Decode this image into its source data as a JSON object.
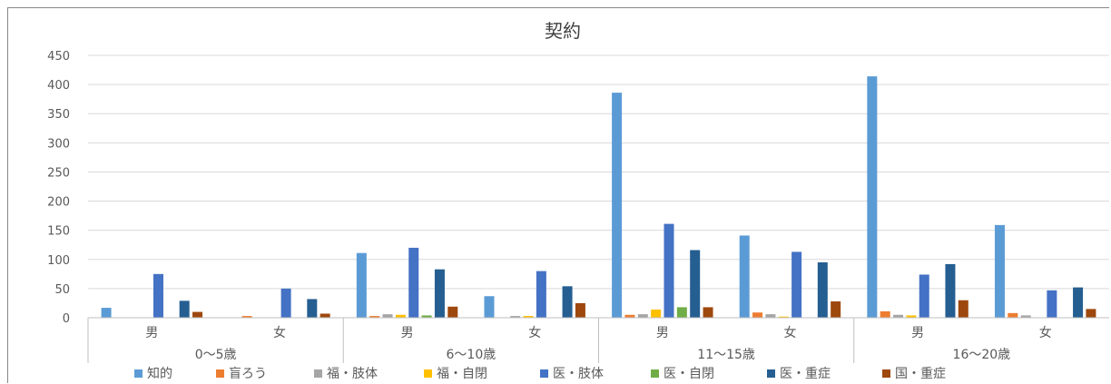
{
  "chart_data": {
    "type": "bar",
    "title": "契約",
    "ylim": [
      0,
      450
    ],
    "yticks": [
      "0",
      "50",
      "100",
      "150",
      "200",
      "250",
      "300",
      "350",
      "400",
      "450"
    ],
    "grid": true,
    "legend_position": "bottom",
    "groups": [
      {
        "label": "0〜5歳",
        "categories": [
          "男",
          "女"
        ]
      },
      {
        "label": "6〜10歳",
        "categories": [
          "男",
          "女"
        ]
      },
      {
        "label": "11〜15歳",
        "categories": [
          "男",
          "女"
        ]
      },
      {
        "label": "16〜20歳",
        "categories": [
          "男",
          "女"
        ]
      }
    ],
    "series": [
      {
        "name": "知的",
        "color": "#5b9bd5",
        "values": [
          17,
          0,
          111,
          37,
          386,
          141,
          414,
          159
        ]
      },
      {
        "name": "盲ろう",
        "color": "#ed7d31",
        "values": [
          0,
          3,
          3,
          0,
          5,
          9,
          11,
          8
        ]
      },
      {
        "name": "福・肢体",
        "color": "#a5a5a5",
        "values": [
          0,
          0,
          6,
          3,
          6,
          6,
          5,
          4
        ]
      },
      {
        "name": "福・自閉",
        "color": "#ffc000",
        "values": [
          0,
          0,
          5,
          3,
          14,
          2,
          4,
          0
        ]
      },
      {
        "name": "医・肢体",
        "color": "#4472c4",
        "values": [
          75,
          50,
          120,
          80,
          161,
          113,
          74,
          47
        ]
      },
      {
        "name": "医・自閉",
        "color": "#70ad47",
        "values": [
          0,
          0,
          4,
          0,
          18,
          0,
          0,
          0
        ]
      },
      {
        "name": "医・重症",
        "color": "#255e91",
        "values": [
          29,
          32,
          83,
          54,
          116,
          95,
          92,
          52
        ]
      },
      {
        "name": "国・重症",
        "color": "#9e480e",
        "values": [
          10,
          7,
          19,
          25,
          18,
          28,
          30,
          15
        ]
      }
    ]
  }
}
